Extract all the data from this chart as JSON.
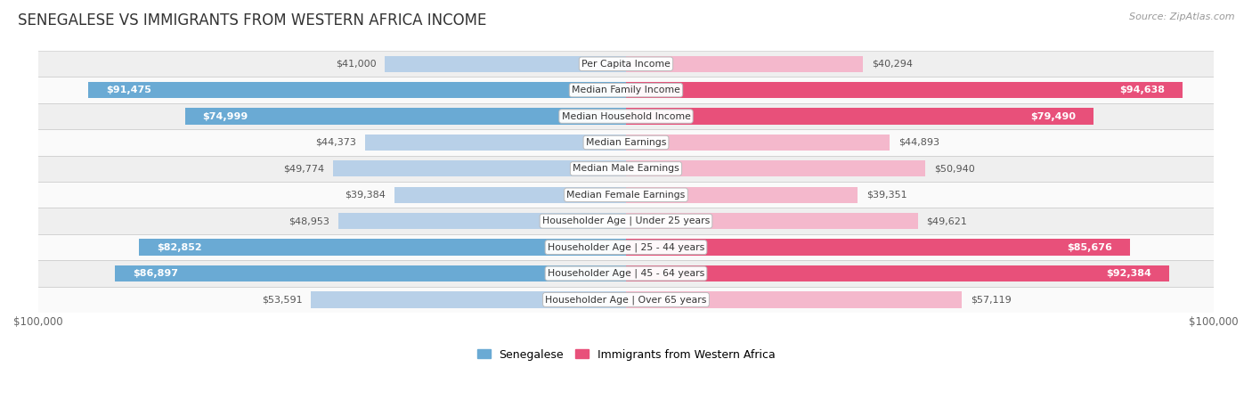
{
  "title": "SENEGALESE VS IMMIGRANTS FROM WESTERN AFRICA INCOME",
  "source": "Source: ZipAtlas.com",
  "categories": [
    "Per Capita Income",
    "Median Family Income",
    "Median Household Income",
    "Median Earnings",
    "Median Male Earnings",
    "Median Female Earnings",
    "Householder Age | Under 25 years",
    "Householder Age | 25 - 44 years",
    "Householder Age | 45 - 64 years",
    "Householder Age | Over 65 years"
  ],
  "senegalese": [
    41000,
    91475,
    74999,
    44373,
    49774,
    39384,
    48953,
    82852,
    86897,
    53591
  ],
  "immigrants": [
    40294,
    94638,
    79490,
    44893,
    50940,
    39351,
    49621,
    85676,
    92384,
    57119
  ],
  "max_val": 100000,
  "senegalese_labels": [
    "$41,000",
    "$91,475",
    "$74,999",
    "$44,373",
    "$49,774",
    "$39,384",
    "$48,953",
    "$82,852",
    "$86,897",
    "$53,591"
  ],
  "immigrants_labels": [
    "$40,294",
    "$94,638",
    "$79,490",
    "$44,893",
    "$50,940",
    "$39,351",
    "$49,621",
    "$85,676",
    "$92,384",
    "$57,119"
  ],
  "color_senegalese_light": "#b8d0e8",
  "color_senegalese_dark": "#6aaad4",
  "color_immigrants_light": "#f4b8cc",
  "color_immigrants_dark": "#e8507a",
  "sen_dark_threshold": 60000,
  "imm_dark_threshold": 60000,
  "bg_row_odd": "#efefef",
  "bg_row_even": "#fafafa",
  "label_fontsize": 8,
  "category_fontsize": 7.8,
  "title_fontsize": 12,
  "bar_height": 0.62,
  "legend_senegalese": "Senegalese",
  "legend_immigrants": "Immigrants from Western Africa"
}
